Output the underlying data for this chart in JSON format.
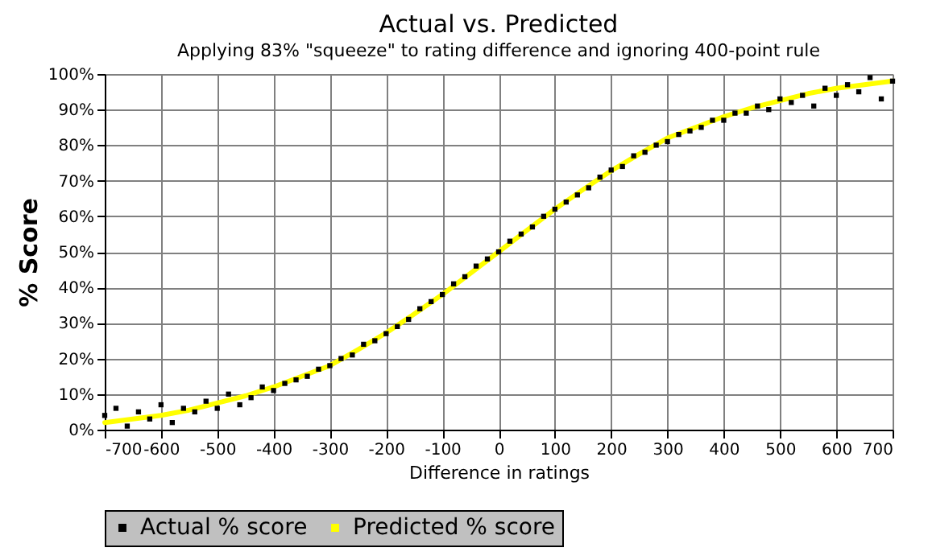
{
  "chart_data": {
    "type": "scatter",
    "title": "Actual vs. Predicted",
    "subtitle": "Applying 83% \"squeeze\" to rating difference and ignoring 400-point rule",
    "xlabel": "Difference in ratings",
    "ylabel": "% Score",
    "xlim": [
      -700,
      700
    ],
    "xticks": [
      -700,
      -600,
      -500,
      -400,
      -300,
      -200,
      -100,
      0,
      100,
      200,
      300,
      400,
      500,
      600,
      700
    ],
    "ylim": [
      0,
      100
    ],
    "yticks": [
      {
        "value": 0,
        "label": "0%"
      },
      {
        "value": 10,
        "label": "10%"
      },
      {
        "value": 20,
        "label": "20%"
      },
      {
        "value": 30,
        "label": "30%"
      },
      {
        "value": 40,
        "label": "40%"
      },
      {
        "value": 50,
        "label": "50%"
      },
      {
        "value": 60,
        "label": "60%"
      },
      {
        "value": 70,
        "label": "70%"
      },
      {
        "value": 80,
        "label": "80%"
      },
      {
        "value": 90,
        "label": "90%"
      },
      {
        "value": 100,
        "label": "100%"
      }
    ],
    "grid": true,
    "legend": "bottom",
    "series": [
      {
        "name": "Actual % score",
        "color": "#000000",
        "type": "scatter",
        "marker": "square",
        "x": [
          -700,
          -680,
          -660,
          -640,
          -620,
          -600,
          -580,
          -560,
          -540,
          -520,
          -500,
          -480,
          -460,
          -440,
          -420,
          -400,
          -380,
          -360,
          -340,
          -320,
          -300,
          -280,
          -260,
          -240,
          -220,
          -200,
          -180,
          -160,
          -140,
          -120,
          -100,
          -80,
          -60,
          -40,
          -20,
          0,
          20,
          40,
          60,
          80,
          100,
          120,
          140,
          160,
          180,
          200,
          220,
          240,
          260,
          280,
          300,
          320,
          340,
          360,
          380,
          400,
          420,
          440,
          460,
          480,
          500,
          520,
          540,
          560,
          580,
          600,
          620,
          640,
          660,
          680,
          700
        ],
        "values": [
          4,
          6,
          1,
          5,
          3,
          7,
          2,
          6,
          5,
          8,
          6,
          10,
          7,
          9,
          12,
          11,
          13,
          14,
          15,
          17,
          18,
          20,
          21,
          24,
          25,
          27,
          29,
          31,
          34,
          36,
          38,
          41,
          43,
          46,
          48,
          50,
          53,
          55,
          57,
          60,
          62,
          64,
          66,
          68,
          71,
          73,
          74,
          77,
          78,
          80,
          81,
          83,
          84,
          85,
          87,
          87,
          89,
          89,
          91,
          90,
          93,
          92,
          94,
          91,
          96,
          94,
          97,
          95,
          99,
          93,
          98
        ]
      },
      {
        "name": "Predicted % score",
        "color": "#ffff00",
        "type": "line",
        "marker": "none",
        "line_style": "solid",
        "x": [
          -700,
          -650,
          -600,
          -550,
          -500,
          -450,
          -400,
          -350,
          -300,
          -250,
          -200,
          -150,
          -100,
          -50,
          0,
          50,
          100,
          150,
          200,
          250,
          300,
          350,
          400,
          450,
          500,
          550,
          600,
          650,
          700
        ],
        "values": [
          2,
          3,
          4,
          5.5,
          7.5,
          9.5,
          12,
          15,
          18,
          22.5,
          27.2,
          32.5,
          38,
          44,
          50,
          56,
          62,
          67.5,
          72.8,
          77.5,
          82,
          85,
          88,
          90.5,
          92.5,
          94.5,
          96,
          97,
          98
        ]
      }
    ]
  }
}
